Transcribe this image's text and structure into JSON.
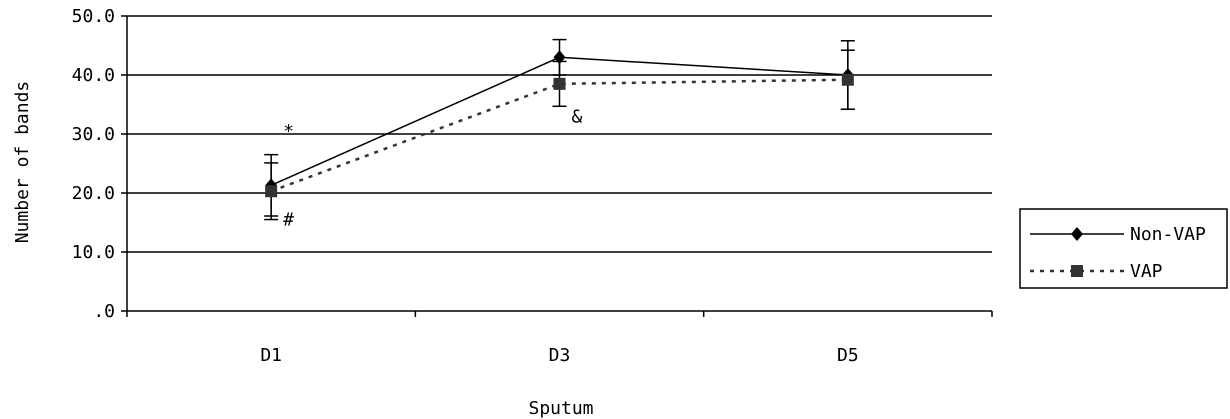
{
  "chart_data": {
    "type": "line",
    "title": "",
    "xlabel": "Sputum",
    "ylabel": "Number of bands",
    "categories": [
      "D1",
      "D3",
      "D5"
    ],
    "ylim": [
      0,
      50
    ],
    "yticks": [
      0,
      10,
      20,
      30,
      40,
      50
    ],
    "ytick_labels": [
      ".0",
      "10.0",
      "20.0",
      "30.0",
      "40.0",
      "50.0"
    ],
    "grid": "horizontal",
    "legend_position": "right",
    "series": [
      {
        "name": "Non-VAP",
        "values": [
          21.3,
          43.0,
          40.0
        ],
        "errors": [
          5.2,
          3.0,
          5.8
        ],
        "marker": "diamond",
        "line_style": "solid",
        "color": "#000000"
      },
      {
        "name": "VAP",
        "values": [
          20.3,
          38.5,
          39.2
        ],
        "errors": [
          4.8,
          3.8,
          5.0
        ],
        "marker": "square",
        "line_style": "dotted",
        "color": "#333333"
      }
    ],
    "annotations": [
      {
        "text": "*",
        "category": "D1",
        "y": 30.5
      },
      {
        "text": "#",
        "category": "D1",
        "y": 15.5
      },
      {
        "text": "&",
        "category": "D3",
        "y": 33.0
      }
    ]
  }
}
